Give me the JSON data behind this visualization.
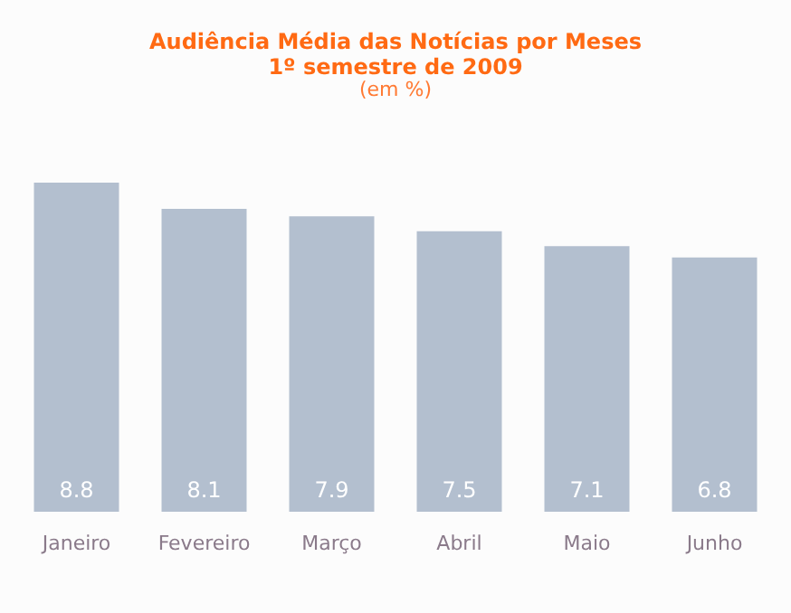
{
  "chart_data": {
    "type": "bar",
    "title": "Audiência Média das Notícias por Meses",
    "subtitle": "1º semestre de 2009",
    "annotations": [
      "(em %)"
    ],
    "categories": [
      "Janeiro",
      "Fevereiro",
      "Março",
      "Abril",
      "Maio",
      "Junho"
    ],
    "values": [
      8.8,
      8.1,
      7.9,
      7.5,
      7.1,
      6.8
    ],
    "color": "#b3bfcf",
    "data_labels": true
  }
}
